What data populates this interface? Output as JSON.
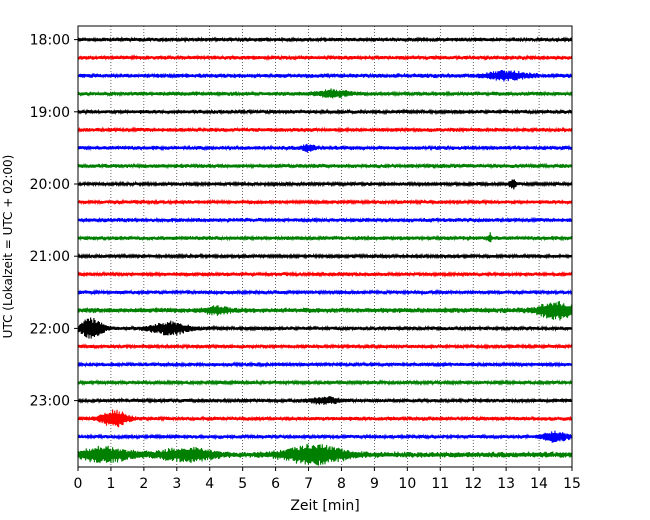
{
  "chart_data": {
    "type": "line",
    "title": "",
    "xlabel": "Zeit  [min]",
    "ylabel": "UTC (Lokalzeit = UTC + 02:00)",
    "xlim": [
      0,
      15
    ],
    "x_ticks": [
      "0",
      "1",
      "2",
      "3",
      "4",
      "5",
      "6",
      "7",
      "8",
      "9",
      "10",
      "11",
      "12",
      "13",
      "14",
      "15"
    ],
    "y_ticks": [
      {
        "label": "18:00",
        "trace_index": 0
      },
      {
        "label": "19:00",
        "trace_index": 4
      },
      {
        "label": "20:00",
        "trace_index": 8
      },
      {
        "label": "21:00",
        "trace_index": 12
      },
      {
        "label": "22:00",
        "trace_index": 16
      },
      {
        "label": "23:00",
        "trace_index": 20
      }
    ],
    "grid": "vertical-dotted",
    "trace_interval_min": 15,
    "series": [
      {
        "start": "18:00",
        "color": "#000000",
        "amplitude": 0.55,
        "events": []
      },
      {
        "start": "18:15",
        "color": "#ff0000",
        "amplitude": 0.55,
        "events": []
      },
      {
        "start": "18:30",
        "color": "#0000ff",
        "amplitude": 0.6,
        "events": [
          {
            "t": 13.0,
            "amp": 1.2,
            "width": 0.6
          }
        ]
      },
      {
        "start": "18:45",
        "color": "#008000",
        "amplitude": 0.55,
        "events": [
          {
            "t": 7.7,
            "amp": 1.0,
            "width": 0.5
          }
        ]
      },
      {
        "start": "19:00",
        "color": "#000000",
        "amplitude": 0.5,
        "events": []
      },
      {
        "start": "19:15",
        "color": "#ff0000",
        "amplitude": 0.55,
        "events": []
      },
      {
        "start": "19:30",
        "color": "#0000ff",
        "amplitude": 0.55,
        "events": [
          {
            "t": 7.0,
            "amp": 1.0,
            "width": 0.2
          }
        ]
      },
      {
        "start": "19:45",
        "color": "#008000",
        "amplitude": 0.55,
        "events": []
      },
      {
        "start": "20:00",
        "color": "#000000",
        "amplitude": 0.45,
        "events": [
          {
            "t": 13.2,
            "amp": 1.6,
            "width": 0.1
          }
        ]
      },
      {
        "start": "20:15",
        "color": "#ff0000",
        "amplitude": 0.5,
        "events": []
      },
      {
        "start": "20:30",
        "color": "#0000ff",
        "amplitude": 0.55,
        "events": []
      },
      {
        "start": "20:45",
        "color": "#008000",
        "amplitude": 0.55,
        "events": [
          {
            "t": 12.5,
            "amp": 1.5,
            "width": 0.05
          }
        ]
      },
      {
        "start": "21:00",
        "color": "#000000",
        "amplitude": 0.45,
        "events": []
      },
      {
        "start": "21:15",
        "color": "#ff0000",
        "amplitude": 0.5,
        "events": []
      },
      {
        "start": "21:30",
        "color": "#0000ff",
        "amplitude": 0.5,
        "events": []
      },
      {
        "start": "21:45",
        "color": "#008000",
        "amplitude": 0.7,
        "events": [
          {
            "t": 14.5,
            "amp": 2.6,
            "width": 0.5
          },
          {
            "t": 4.2,
            "amp": 1.0,
            "width": 0.4
          }
        ]
      },
      {
        "start": "22:00",
        "color": "#000000",
        "amplitude": 0.5,
        "events": [
          {
            "t": 0.4,
            "amp": 3.0,
            "width": 0.35
          },
          {
            "t": 2.8,
            "amp": 1.8,
            "width": 0.6
          }
        ]
      },
      {
        "start": "22:15",
        "color": "#ff0000",
        "amplitude": 0.5,
        "events": []
      },
      {
        "start": "22:30",
        "color": "#0000ff",
        "amplitude": 0.5,
        "events": []
      },
      {
        "start": "22:45",
        "color": "#008000",
        "amplitude": 0.45,
        "events": []
      },
      {
        "start": "23:00",
        "color": "#000000",
        "amplitude": 0.5,
        "events": [
          {
            "t": 7.5,
            "amp": 0.9,
            "width": 0.5
          }
        ]
      },
      {
        "start": "23:15",
        "color": "#ff0000",
        "amplitude": 0.55,
        "events": [
          {
            "t": 1.1,
            "amp": 2.5,
            "width": 0.4
          }
        ]
      },
      {
        "start": "23:30",
        "color": "#0000ff",
        "amplitude": 0.5,
        "events": [
          {
            "t": 14.5,
            "amp": 1.5,
            "width": 0.4
          }
        ]
      },
      {
        "start": "23:45",
        "color": "#008000",
        "amplitude": 0.8,
        "events": [
          {
            "t": 0.8,
            "amp": 2.0,
            "width": 0.8
          },
          {
            "t": 3.3,
            "amp": 1.8,
            "width": 0.8
          },
          {
            "t": 7.2,
            "amp": 2.7,
            "width": 0.9
          }
        ]
      }
    ]
  }
}
